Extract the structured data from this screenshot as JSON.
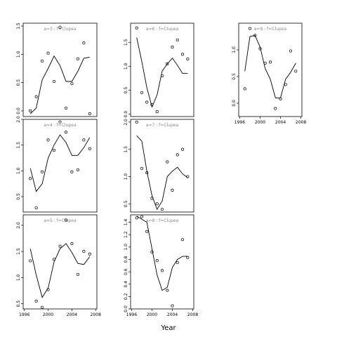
{
  "figure": {
    "xlabel": "Year"
  },
  "chart_data": [
    {
      "type": "scatter",
      "title": "a=3  :  f=Clupea",
      "x_ticks": [],
      "y_ticks": [
        "0.0",
        "0.5",
        "1.0",
        "1.5"
      ],
      "ylim": [
        -0.1,
        1.55
      ],
      "xlim": [
        1995.8,
        2008.2
      ],
      "observed": {
        "x": [
          1997,
          1998,
          1999,
          2000,
          2001,
          2002,
          2003,
          2004,
          2005,
          2006,
          2007
        ],
        "y": [
          0.0,
          0.25,
          0.88,
          1.02,
          0.52,
          1.48,
          0.05,
          0.48,
          0.92,
          1.2,
          -0.05
        ]
      },
      "fitted": {
        "x": [
          1997,
          1998,
          1999,
          2000,
          2001,
          2002,
          2003,
          2004,
          2005,
          2006,
          2007
        ],
        "y": [
          -0.05,
          0.05,
          0.55,
          0.75,
          0.97,
          0.8,
          0.52,
          0.52,
          0.7,
          0.93,
          0.95
        ]
      }
    },
    {
      "type": "scatter",
      "title": "a=4  :  f=Clupea",
      "x_ticks": [],
      "y_ticks": [
        "0.5",
        "1.0",
        "1.5",
        "2.0"
      ],
      "ylim": [
        0.2,
        2.0
      ],
      "xlim": [
        1995.8,
        2008.2
      ],
      "observed": {
        "x": [
          1997,
          1998,
          1999,
          2000,
          2001,
          2002,
          2003,
          2004,
          2005,
          2006,
          2007
        ],
        "y": [
          0.85,
          0.28,
          0.98,
          1.6,
          1.4,
          1.95,
          1.75,
          0.98,
          1.02,
          1.6,
          1.43
        ]
      },
      "fitted": {
        "x": [
          1997,
          1998,
          1999,
          2000,
          2001,
          2002,
          2003,
          2004,
          2005,
          2006,
          2007
        ],
        "y": [
          1.05,
          0.6,
          0.75,
          1.25,
          1.5,
          1.7,
          1.55,
          1.3,
          1.3,
          1.45,
          1.65
        ]
      }
    },
    {
      "type": "scatter",
      "title": "a=5  :  f=Clupea",
      "x_ticks": [
        "1996",
        "2000",
        "2004",
        "2008"
      ],
      "y_ticks": [
        "0.5",
        "1.0",
        "1.5",
        "2.0"
      ],
      "ylim": [
        0.4,
        2.2
      ],
      "xlim": [
        1995.8,
        2008.2
      ],
      "observed": {
        "x": [
          1997,
          1998,
          1999,
          2000,
          2001,
          2002,
          2003,
          2004,
          2005,
          2006,
          2007
        ],
        "y": [
          1.32,
          0.55,
          0.43,
          0.77,
          1.35,
          1.6,
          2.1,
          1.65,
          1.06,
          1.5,
          1.45
        ]
      },
      "fitted": {
        "x": [
          1997,
          1998,
          1999,
          2000,
          2001,
          2002,
          2003,
          2004,
          2005,
          2006,
          2007
        ],
        "y": [
          1.55,
          1.05,
          0.62,
          0.8,
          1.3,
          1.55,
          1.65,
          1.48,
          1.27,
          1.25,
          1.4
        ]
      }
    },
    {
      "type": "scatter",
      "title": "a=6  :  f=Clupea",
      "x_ticks": [],
      "y_ticks": [
        "0.0",
        "0.5",
        "1.0",
        "1.5"
      ],
      "ylim": [
        -0.05,
        1.9
      ],
      "xlim": [
        1995.8,
        2008.2
      ],
      "observed": {
        "x": [
          1997,
          1998,
          1999,
          2000,
          2001,
          2002,
          2003,
          2004,
          2005,
          2006,
          2007
        ],
        "y": [
          1.8,
          0.45,
          0.25,
          0.2,
          0.05,
          0.8,
          1.05,
          1.4,
          1.55,
          1.25,
          1.15
        ]
      },
      "fitted": {
        "x": [
          1997,
          1998,
          1999,
          2000,
          2001,
          2002,
          2003,
          2004,
          2005,
          2006,
          2007
        ],
        "y": [
          1.6,
          1.1,
          0.55,
          0.15,
          0.4,
          0.9,
          1.05,
          1.17,
          1.02,
          0.85,
          0.85
        ]
      }
    },
    {
      "type": "scatter",
      "title": "a=7  :  f=Clupea",
      "x_ticks": [],
      "y_ticks": [
        "0.5",
        "1.0",
        "1.5",
        "2.0"
      ],
      "ylim": [
        0.35,
        2.05
      ],
      "xlim": [
        1995.8,
        2008.2
      ],
      "observed": {
        "x": [
          1997,
          1998,
          1999,
          2000,
          2001,
          2002,
          2003,
          2004,
          2005,
          2006,
          2007
        ],
        "y": [
          2.0,
          1.15,
          1.07,
          0.6,
          0.5,
          0.4,
          1.27,
          0.75,
          1.4,
          1.5,
          1.0
        ]
      },
      "fitted": {
        "x": [
          1997,
          1998,
          1999,
          2000,
          2001,
          2002,
          2003,
          2004,
          2005,
          2006,
          2007
        ],
        "y": [
          1.75,
          1.65,
          1.1,
          0.65,
          0.4,
          0.55,
          1.0,
          1.1,
          1.17,
          1.05,
          0.98
        ]
      }
    },
    {
      "type": "scatter",
      "title": "a=8  :  f=Clupea",
      "x_ticks": [
        "1996",
        "2000",
        "2004",
        "2008"
      ],
      "y_ticks": [
        "0.0",
        "0.2",
        "0.4",
        "0.6",
        "0.8",
        "1.0",
        "1.2",
        "1.4"
      ],
      "ylim": [
        0.0,
        1.52
      ],
      "xlim": [
        1995.8,
        2008.2
      ],
      "observed": {
        "x": [
          1997,
          1998,
          1999,
          2000,
          2001,
          2002,
          2003,
          2004,
          2005,
          2006,
          2007
        ],
        "y": [
          1.47,
          1.49,
          1.25,
          0.92,
          0.78,
          0.62,
          0.3,
          0.05,
          0.75,
          1.12,
          0.83
        ]
      },
      "fitted": {
        "x": [
          1997,
          1998,
          1999,
          2000,
          2001,
          2002,
          2003,
          2004,
          2005,
          2006,
          2007
        ],
        "y": [
          1.5,
          1.45,
          1.4,
          0.97,
          0.55,
          0.3,
          0.35,
          0.67,
          0.8,
          0.85,
          0.85
        ]
      }
    },
    {
      "type": "scatter",
      "title": "a=9  :  f=Clupea",
      "x_ticks": [
        "1996",
        "2000",
        "2004",
        "2008"
      ],
      "y_ticks": [
        "0.0",
        "0.5",
        "1.0"
      ],
      "ylim": [
        -0.25,
        1.5
      ],
      "xlim": [
        1995.8,
        2008.2
      ],
      "observed": {
        "x": [
          1997,
          1998,
          1999,
          2000,
          2001,
          2002,
          2003,
          2004,
          2005,
          2006,
          2007
        ],
        "y": [
          0.27,
          1.4,
          1.27,
          1.02,
          0.75,
          0.77,
          -0.1,
          0.08,
          0.35,
          0.98,
          0.6
        ]
      },
      "fitted": {
        "x": [
          1997,
          1998,
          1999,
          2000,
          2001,
          2002,
          2003,
          2004,
          2005,
          2006,
          2007
        ],
        "y": [
          0.6,
          1.25,
          1.27,
          1.05,
          0.65,
          0.45,
          0.1,
          0.1,
          0.45,
          0.58,
          0.75
        ]
      }
    }
  ]
}
